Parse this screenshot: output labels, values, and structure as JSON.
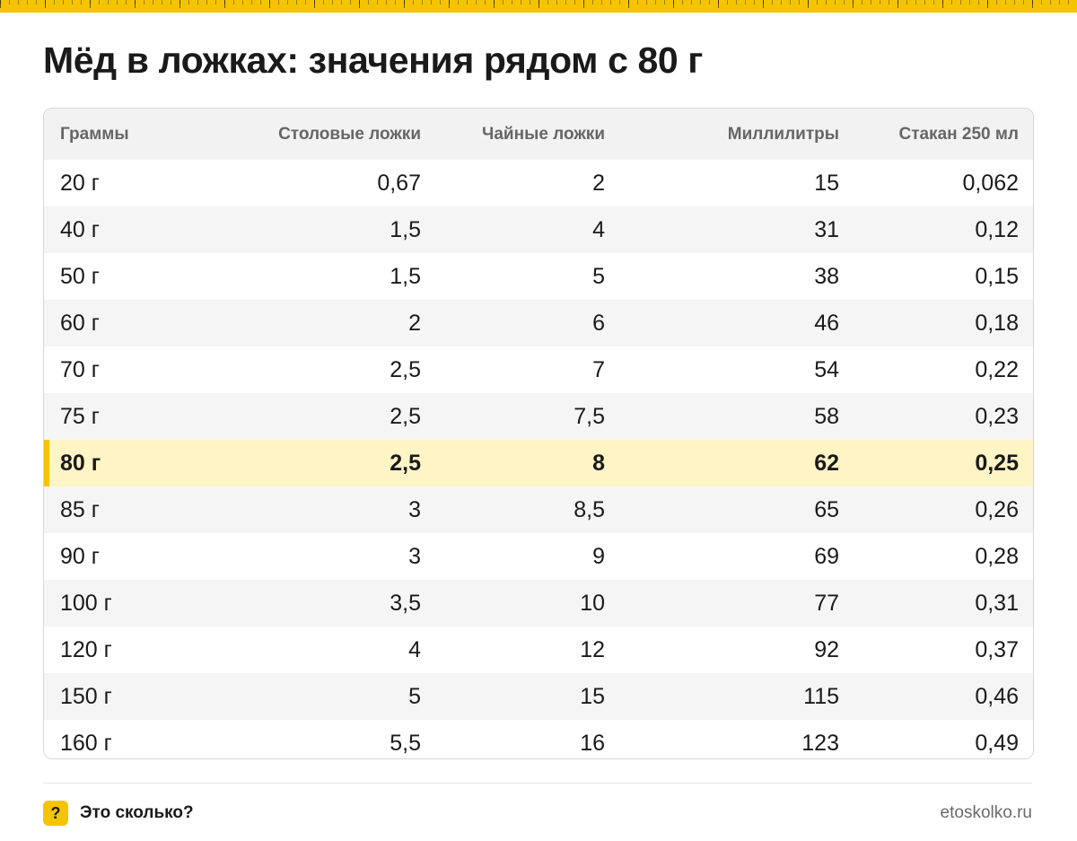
{
  "title": "Мёд в ложках: значения рядом с 80 г",
  "table": {
    "headers": [
      "Граммы",
      "Столовые ложки",
      "Чайные ложки",
      "Миллилитры",
      "Стакан 250 мл"
    ],
    "highlight_row": 6,
    "rows": [
      [
        "20 г",
        "0,67",
        "2",
        "15",
        "0,062"
      ],
      [
        "40 г",
        "1,5",
        "4",
        "31",
        "0,12"
      ],
      [
        "50 г",
        "1,5",
        "5",
        "38",
        "0,15"
      ],
      [
        "60 г",
        "2",
        "6",
        "46",
        "0,18"
      ],
      [
        "70 г",
        "2,5",
        "7",
        "54",
        "0,22"
      ],
      [
        "75 г",
        "2,5",
        "7,5",
        "58",
        "0,23"
      ],
      [
        "80 г",
        "2,5",
        "8",
        "62",
        "0,25"
      ],
      [
        "85 г",
        "3",
        "8,5",
        "65",
        "0,26"
      ],
      [
        "90 г",
        "3",
        "9",
        "69",
        "0,28"
      ],
      [
        "100 г",
        "3,5",
        "10",
        "77",
        "0,31"
      ],
      [
        "120 г",
        "4",
        "12",
        "92",
        "0,37"
      ],
      [
        "150 г",
        "5",
        "15",
        "115",
        "0,46"
      ],
      [
        "160 г",
        "5,5",
        "16",
        "123",
        "0,49"
      ]
    ]
  },
  "footer": {
    "badge_symbol": "?",
    "brand": "Это сколько?",
    "site": "etoskolko.ru"
  },
  "colors": {
    "accent": "#f5c400",
    "highlight_bg": "#fff4c6",
    "header_bg": "#f2f2f2"
  }
}
